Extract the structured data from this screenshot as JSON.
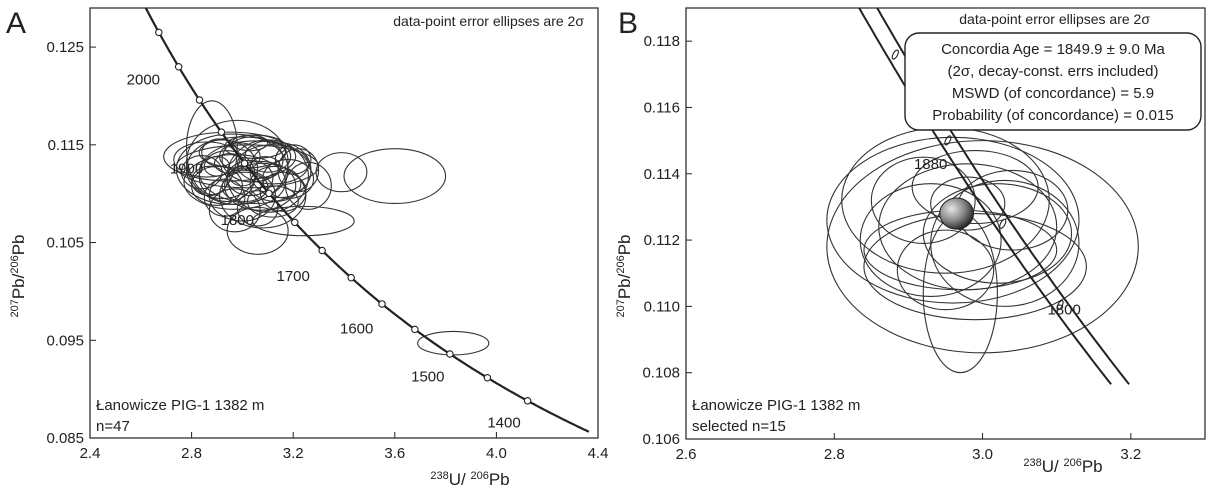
{
  "chart_data": [
    {
      "type": "scatter",
      "panel": "A",
      "note": "data-point error ellipses are 2σ",
      "xlabel": {
        "m1": "238",
        "t1": "U/ ",
        "m2": "206",
        "t2": "Pb"
      },
      "ylabel": {
        "m1": "207",
        "t1": "Pb/",
        "m2": "206",
        "t2": "Pb"
      },
      "xlim": [
        2.4,
        4.4
      ],
      "ylim": [
        0.085,
        0.129
      ],
      "xticks": [
        "2.4",
        "2.8",
        "3.2",
        "3.6",
        "4.0",
        "4.4"
      ],
      "yticks": [
        "0.085",
        "0.095",
        "0.105",
        "0.115",
        "0.125"
      ],
      "sample_label": "Łanowicze PIG-1 1382 m",
      "n_label": "n=47",
      "concordia_age_labels": [
        {
          "text": "2000",
          "x": 2.61,
          "y": 0.1217
        },
        {
          "text": "1900",
          "x": 2.78,
          "y": 0.1126
        },
        {
          "text": "1800",
          "x": 2.98,
          "y": 0.1073
        },
        {
          "text": "1700",
          "x": 3.2,
          "y": 0.1016
        },
        {
          "text": "1600",
          "x": 3.45,
          "y": 0.0962
        },
        {
          "text": "1500",
          "x": 3.73,
          "y": 0.0913
        },
        {
          "text": "1400",
          "x": 4.03,
          "y": 0.0866
        }
      ],
      "ellipses": [
        {
          "x": 2.98,
          "y": 0.1132,
          "sx": 0.2,
          "sy": 0.0043
        },
        {
          "x": 2.88,
          "y": 0.1147,
          "sx": 0.1,
          "sy": 0.0048
        },
        {
          "x": 2.95,
          "y": 0.1138,
          "sx": 0.26,
          "sy": 0.0025
        },
        {
          "x": 3.02,
          "y": 0.1128,
          "sx": 0.28,
          "sy": 0.0022
        },
        {
          "x": 3.05,
          "y": 0.1122,
          "sx": 0.22,
          "sy": 0.0032
        },
        {
          "x": 2.92,
          "y": 0.1125,
          "sx": 0.14,
          "sy": 0.003
        },
        {
          "x": 3.1,
          "y": 0.1118,
          "sx": 0.16,
          "sy": 0.0037
        },
        {
          "x": 2.97,
          "y": 0.1112,
          "sx": 0.2,
          "sy": 0.0028
        },
        {
          "x": 3.04,
          "y": 0.1135,
          "sx": 0.12,
          "sy": 0.0023
        },
        {
          "x": 3.12,
          "y": 0.113,
          "sx": 0.14,
          "sy": 0.002
        },
        {
          "x": 2.86,
          "y": 0.1135,
          "sx": 0.13,
          "sy": 0.0018
        },
        {
          "x": 3.0,
          "y": 0.1142,
          "sx": 0.17,
          "sy": 0.0016
        },
        {
          "x": 2.94,
          "y": 0.1118,
          "sx": 0.11,
          "sy": 0.0026
        },
        {
          "x": 3.07,
          "y": 0.1108,
          "sx": 0.14,
          "sy": 0.0025
        },
        {
          "x": 3.15,
          "y": 0.1124,
          "sx": 0.12,
          "sy": 0.0028
        },
        {
          "x": 2.9,
          "y": 0.1108,
          "sx": 0.1,
          "sy": 0.002
        },
        {
          "x": 3.0,
          "y": 0.1098,
          "sx": 0.13,
          "sy": 0.0026
        },
        {
          "x": 3.08,
          "y": 0.1098,
          "sx": 0.17,
          "sy": 0.0033
        },
        {
          "x": 3.18,
          "y": 0.1115,
          "sx": 0.1,
          "sy": 0.002
        },
        {
          "x": 2.96,
          "y": 0.1125,
          "sx": 0.22,
          "sy": 0.0036
        },
        {
          "x": 3.03,
          "y": 0.1116,
          "sx": 0.09,
          "sy": 0.0018
        },
        {
          "x": 2.99,
          "y": 0.1138,
          "sx": 0.08,
          "sy": 0.0014
        },
        {
          "x": 3.1,
          "y": 0.1138,
          "sx": 0.09,
          "sy": 0.0016
        },
        {
          "x": 2.84,
          "y": 0.1122,
          "sx": 0.08,
          "sy": 0.0017
        },
        {
          "x": 3.22,
          "y": 0.1124,
          "sx": 0.08,
          "sy": 0.0022
        },
        {
          "x": 3.13,
          "y": 0.111,
          "sx": 0.1,
          "sy": 0.0018
        },
        {
          "x": 2.93,
          "y": 0.1096,
          "sx": 0.08,
          "sy": 0.0019
        },
        {
          "x": 3.05,
          "y": 0.1148,
          "sx": 0.12,
          "sy": 0.0012
        },
        {
          "x": 2.91,
          "y": 0.1142,
          "sx": 0.07,
          "sy": 0.0014
        },
        {
          "x": 3.01,
          "y": 0.1107,
          "sx": 0.09,
          "sy": 0.0015
        },
        {
          "x": 3.16,
          "y": 0.1102,
          "sx": 0.09,
          "sy": 0.002
        },
        {
          "x": 2.97,
          "y": 0.1083,
          "sx": 0.1,
          "sy": 0.0022
        },
        {
          "x": 3.06,
          "y": 0.1085,
          "sx": 0.08,
          "sy": 0.0018
        },
        {
          "x": 3.26,
          "y": 0.1108,
          "sx": 0.09,
          "sy": 0.0024
        },
        {
          "x": 2.87,
          "y": 0.1113,
          "sx": 0.07,
          "sy": 0.0015
        },
        {
          "x": 3.09,
          "y": 0.1127,
          "sx": 0.06,
          "sy": 0.0011
        },
        {
          "x": 2.95,
          "y": 0.1131,
          "sx": 0.06,
          "sy": 0.001
        },
        {
          "x": 3.2,
          "y": 0.1135,
          "sx": 0.07,
          "sy": 0.0015
        },
        {
          "x": 3.0,
          "y": 0.1118,
          "sx": 0.05,
          "sy": 0.001
        },
        {
          "x": 3.12,
          "y": 0.1092,
          "sx": 0.1,
          "sy": 0.0016
        },
        {
          "x": 3.03,
          "y": 0.1152,
          "sx": 0.07,
          "sy": 0.0008
        },
        {
          "x": 2.9,
          "y": 0.1128,
          "sx": 0.05,
          "sy": 0.001
        },
        {
          "x": 3.24,
          "y": 0.1072,
          "sx": 0.2,
          "sy": 0.0015
        },
        {
          "x": 3.06,
          "y": 0.1062,
          "sx": 0.12,
          "sy": 0.0024
        },
        {
          "x": 3.6,
          "y": 0.1118,
          "sx": 0.2,
          "sy": 0.0028
        },
        {
          "x": 3.39,
          "y": 0.1122,
          "sx": 0.1,
          "sy": 0.002
        },
        {
          "x": 3.83,
          "y": 0.0947,
          "sx": 0.14,
          "sy": 0.0012
        }
      ]
    },
    {
      "type": "scatter",
      "panel": "B",
      "note": "data-point error ellipses are 2σ",
      "xlabel": {
        "m1": "238",
        "t1": "U/ ",
        "m2": "206",
        "t2": "Pb"
      },
      "ylabel": {
        "m1": "207",
        "t1": "Pb/",
        "m2": "206",
        "t2": "Pb"
      },
      "xlim": [
        2.6,
        3.3
      ],
      "ylim": [
        0.106,
        0.119
      ],
      "xticks": [
        "2.6",
        "2.8",
        "3.0",
        "3.2"
      ],
      "yticks": [
        "0.106",
        "0.108",
        "0.110",
        "0.112",
        "0.114",
        "0.116",
        "0.118"
      ],
      "sample_label": "Łanowicze PIG-1 1382 m",
      "n_label": "selected n=15",
      "concordia_age_labels": [
        {
          "text": "1880",
          "x": 2.93,
          "y": 0.1143
        },
        {
          "text": "1800",
          "x": 3.11,
          "y": 0.1099
        }
      ],
      "result_box": [
        "Concordia Age = 1849.9 ± 9.0 Ma",
        "(2σ, decay-const. errs included)",
        "MSWD (of concordance) = 5.9",
        "Probability (of concordance) = 0.015"
      ],
      "concordia_age": {
        "x": 2.965,
        "y": 0.1128,
        "sx": 0.012,
        "sy": 0.00035
      },
      "ellipses": [
        {
          "x": 2.96,
          "y": 0.1126,
          "sx": 0.17,
          "sy": 0.0025
        },
        {
          "x": 3.0,
          "y": 0.1118,
          "sx": 0.21,
          "sy": 0.0032
        },
        {
          "x": 2.95,
          "y": 0.1132,
          "sx": 0.14,
          "sy": 0.0022
        },
        {
          "x": 2.98,
          "y": 0.1124,
          "sx": 0.12,
          "sy": 0.0019
        },
        {
          "x": 3.02,
          "y": 0.1122,
          "sx": 0.1,
          "sy": 0.0015
        },
        {
          "x": 2.93,
          "y": 0.112,
          "sx": 0.095,
          "sy": 0.0017
        },
        {
          "x": 2.97,
          "y": 0.1117,
          "sx": 0.13,
          "sy": 0.0012
        },
        {
          "x": 2.99,
          "y": 0.1136,
          "sx": 0.085,
          "sy": 0.0011
        },
        {
          "x": 2.92,
          "y": 0.1132,
          "sx": 0.07,
          "sy": 0.0013
        },
        {
          "x": 3.04,
          "y": 0.1129,
          "sx": 0.075,
          "sy": 0.0012
        },
        {
          "x": 2.95,
          "y": 0.1111,
          "sx": 0.065,
          "sy": 0.0012
        },
        {
          "x": 2.99,
          "y": 0.1112,
          "sx": 0.15,
          "sy": 0.0016
        },
        {
          "x": 3.03,
          "y": 0.1119,
          "sx": 0.1,
          "sy": 0.0019
        },
        {
          "x": 2.97,
          "y": 0.1104,
          "sx": 0.05,
          "sy": 0.0024
        },
        {
          "x": 2.98,
          "y": 0.1131,
          "sx": 0.05,
          "sy": 0.0008
        }
      ]
    }
  ]
}
